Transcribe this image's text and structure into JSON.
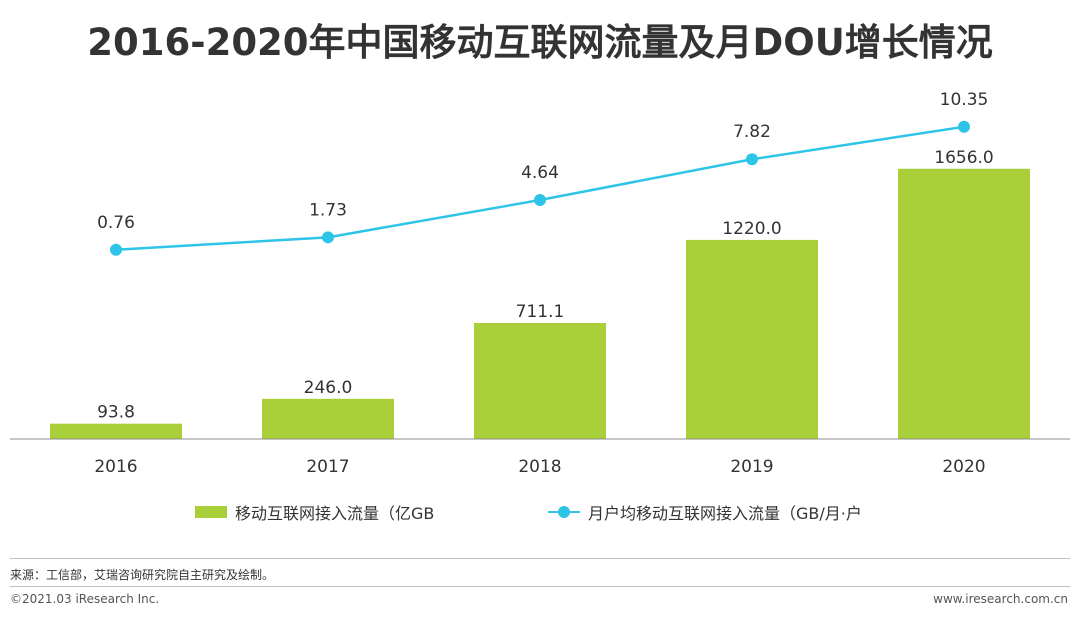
{
  "title": "2016-2020年中国移动互联网流量及月DOU增长情况",
  "chart_data": {
    "type": "bar",
    "title": "2016-2020年中国移动互联网流量及月DOU增长情况",
    "categories": [
      "2016",
      "2017",
      "2018",
      "2019",
      "2020"
    ],
    "series": [
      {
        "name": "移动互联网接入流量（亿GB",
        "type": "bar",
        "axis": "left",
        "color": "#a9cf38",
        "values": [
          93.8,
          246.0,
          711.1,
          1220.0,
          1656.0
        ],
        "labels": [
          "93.8",
          "246.0",
          "711.1",
          "1220.0",
          "1656.0"
        ],
        "ylim": [
          0,
          2200
        ]
      },
      {
        "name": "月户均移动互联网接入流量（GB/月·户",
        "type": "line",
        "axis": "right",
        "color": "#2ec4e8",
        "values": [
          0.76,
          1.73,
          4.64,
          7.82,
          10.35
        ],
        "labels": [
          "0.76",
          "1.73",
          "4.64",
          "7.82",
          "10.35"
        ],
        "ylim": [
          -14,
          14
        ]
      }
    ],
    "xlabel": "",
    "ylabel": "",
    "grid": false,
    "legend": "bottom-center"
  },
  "legend": {
    "bar_label": "移动互联网接入流量（亿GB",
    "line_label": "月户均移动互联网接入流量（GB/月·户"
  },
  "footer": {
    "source": "来源：工信部，艾瑞咨询研究院自主研究及绘制。",
    "copyright": "©2021.03 iResearch Inc.",
    "website": "www.iresearch.com.cn"
  }
}
